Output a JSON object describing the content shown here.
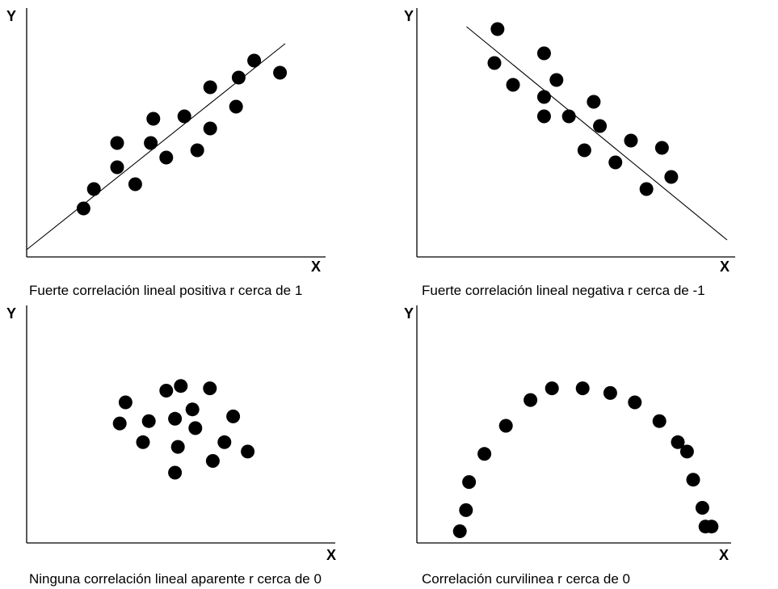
{
  "chart_data": [
    {
      "type": "scatter",
      "title": "Fuerte correlación lineal positiva r cerca de 1",
      "xlabel": "X",
      "ylabel": "Y",
      "xlim": [
        0,
        10
      ],
      "ylim": [
        0,
        10
      ],
      "grid": false,
      "trend_line": [
        [
          0,
          0.3
        ],
        [
          10,
          8.8
        ]
      ],
      "series": [
        {
          "x": [
            2.2,
            2.6,
            3.5,
            3.5,
            4.2,
            4.8,
            4.9,
            5.4,
            6.1,
            6.6,
            7.1,
            7.1,
            8.1,
            8.2,
            8.8,
            9.8
          ],
          "y": [
            2.0,
            2.8,
            3.7,
            4.7,
            3.0,
            4.7,
            5.7,
            4.1,
            5.8,
            4.4,
            5.3,
            7.0,
            6.2,
            7.4,
            8.1,
            7.6
          ]
        }
      ]
    },
    {
      "type": "scatter",
      "title": "Fuerte correlación lineal negativa r cerca de -1",
      "xlabel": "X",
      "ylabel": "Y",
      "xlim": [
        0,
        10
      ],
      "ylim": [
        0,
        10
      ],
      "grid": false,
      "trend_line": [
        [
          1.6,
          9.5
        ],
        [
          10,
          0.7
        ]
      ],
      "series": [
        {
          "x": [
            2.5,
            2.6,
            3.1,
            4.1,
            4.1,
            4.1,
            4.5,
            4.9,
            5.4,
            5.7,
            5.9,
            6.4,
            6.9,
            7.4,
            7.9,
            8.2
          ],
          "y": [
            8.0,
            9.4,
            7.1,
            8.4,
            6.6,
            5.8,
            7.3,
            5.8,
            4.4,
            6.4,
            5.4,
            3.9,
            4.8,
            2.8,
            4.5,
            3.3
          ]
        }
      ]
    },
    {
      "type": "scatter",
      "title": "Ninguna correlación lineal aparente r cerca de 0",
      "xlabel": "X",
      "ylabel": "Y",
      "xlim": [
        0,
        10
      ],
      "ylim": [
        0,
        10
      ],
      "grid": false,
      "series": [
        {
          "x": [
            3.2,
            3.4,
            4.0,
            4.2,
            4.8,
            5.1,
            5.1,
            5.2,
            5.3,
            5.7,
            5.8,
            6.3,
            6.4,
            6.8,
            7.1,
            7.6
          ],
          "y": [
            5.1,
            6.0,
            4.3,
            5.2,
            6.5,
            5.3,
            3.0,
            4.1,
            6.7,
            5.7,
            4.9,
            6.6,
            3.5,
            4.3,
            5.4,
            3.9
          ]
        }
      ]
    },
    {
      "type": "scatter",
      "title": "Correlación curvilinea r cerca de 0",
      "xlabel": "X",
      "ylabel": "Y",
      "xlim": [
        0,
        10
      ],
      "ylim": [
        0,
        10
      ],
      "grid": false,
      "series": [
        {
          "x": [
            1.4,
            1.6,
            1.7,
            2.2,
            2.9,
            3.7,
            4.4,
            5.4,
            6.3,
            7.1,
            7.9,
            8.5,
            8.8,
            9.0,
            9.3,
            9.4,
            9.6
          ],
          "y": [
            0.5,
            1.4,
            2.6,
            3.8,
            5.0,
            6.1,
            6.6,
            6.6,
            6.4,
            6.0,
            5.2,
            4.3,
            3.9,
            2.7,
            1.5,
            0.7,
            0.7
          ]
        }
      ]
    }
  ]
}
